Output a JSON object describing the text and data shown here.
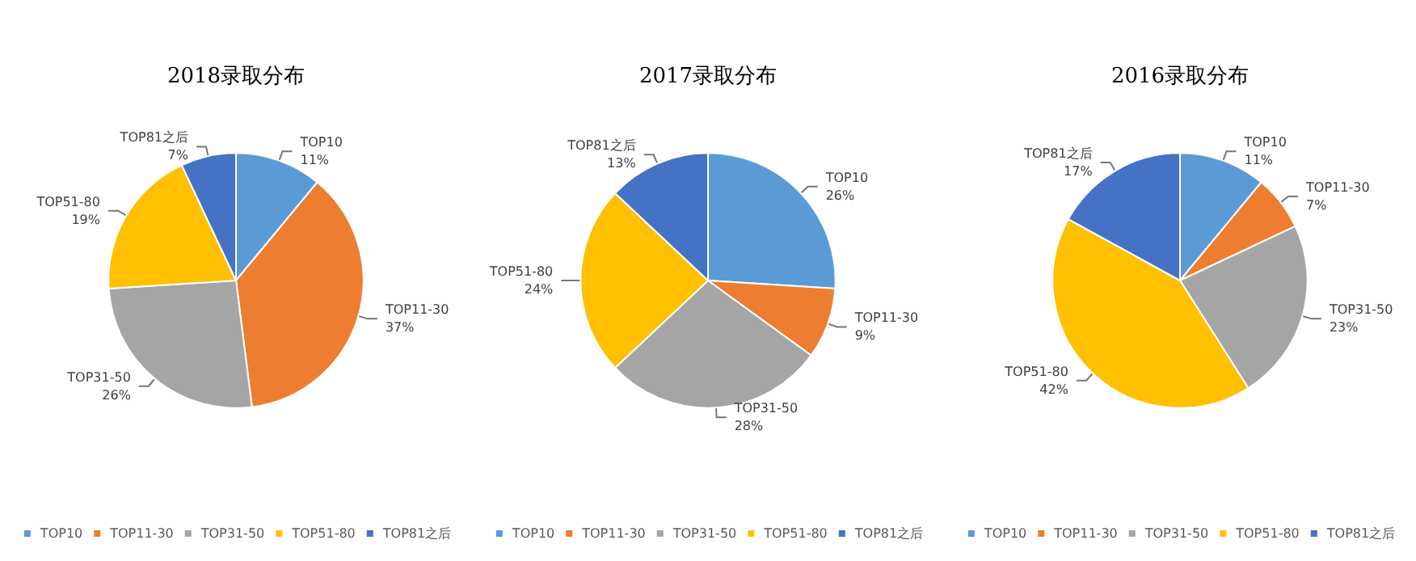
{
  "chart_data": [
    {
      "type": "pie",
      "title": "2018录取分布",
      "categories": [
        "TOP10",
        "TOP11-30",
        "TOP31-50",
        "TOP51-80",
        "TOP81之后"
      ],
      "values": [
        11,
        37,
        26,
        19,
        7
      ],
      "value_labels": [
        "11%",
        "37%",
        "26%",
        "19%",
        "7%"
      ],
      "colors": [
        "#5b9bd5",
        "#ed7d31",
        "#a5a5a5",
        "#ffc000",
        "#4472c4"
      ],
      "legend": "bottom"
    },
    {
      "type": "pie",
      "title": "2017录取分布",
      "categories": [
        "TOP10",
        "TOP11-30",
        "TOP31-50",
        "TOP51-80",
        "TOP81之后"
      ],
      "values": [
        26,
        9,
        28,
        24,
        13
      ],
      "value_labels": [
        "26%",
        "9%",
        "28%",
        "24%",
        "13%"
      ],
      "colors": [
        "#5b9bd5",
        "#ed7d31",
        "#a5a5a5",
        "#ffc000",
        "#4472c4"
      ],
      "legend": "bottom"
    },
    {
      "type": "pie",
      "title": "2016录取分布",
      "categories": [
        "TOP10",
        "TOP11-30",
        "TOP31-50",
        "TOP51-80",
        "TOP81之后"
      ],
      "values": [
        11,
        7,
        23,
        42,
        17
      ],
      "value_labels": [
        "11%",
        "7%",
        "23%",
        "42%",
        "17%"
      ],
      "colors": [
        "#5b9bd5",
        "#ed7d31",
        "#a5a5a5",
        "#ffc000",
        "#4472c4"
      ],
      "legend": "bottom"
    }
  ]
}
